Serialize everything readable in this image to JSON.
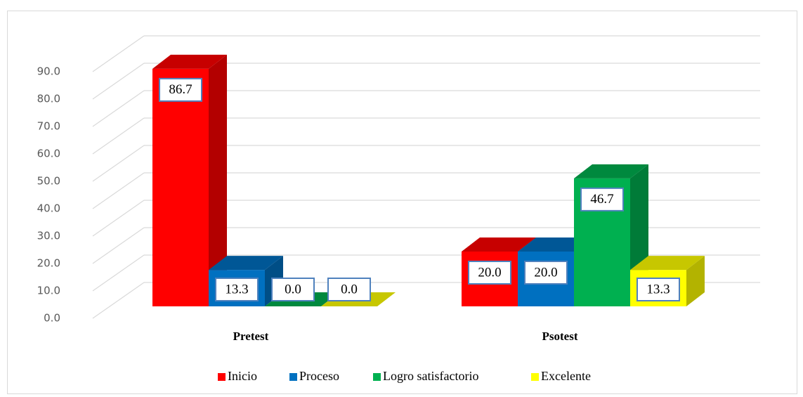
{
  "chart_data": {
    "type": "bar3d",
    "categories": [
      "Pretest",
      "Psotest"
    ],
    "series": [
      {
        "name": "Inicio",
        "color": "#ff0000",
        "values": [
          86.7,
          20.0
        ],
        "value_labels": [
          "86.7",
          "20.0"
        ]
      },
      {
        "name": "Proceso",
        "color": "#0070c0",
        "values": [
          13.3,
          20.0
        ],
        "value_labels": [
          "13.3",
          "20.0"
        ]
      },
      {
        "name": "Logro satisfactorio",
        "color": "#00b050",
        "values": [
          0.0,
          46.7
        ],
        "value_labels": [
          "0.0",
          "46.7"
        ]
      },
      {
        "name": "Excelente",
        "color": "#ffff00",
        "values": [
          0.0,
          13.3
        ],
        "value_labels": [
          "0.0",
          "13.3"
        ]
      }
    ],
    "ylim": [
      0,
      90
    ],
    "yticks": [
      {
        "value": 0,
        "label": "0.0"
      },
      {
        "value": 10,
        "label": "10.0"
      },
      {
        "value": 20,
        "label": "20.0"
      },
      {
        "value": 30,
        "label": "30.0"
      },
      {
        "value": 40,
        "label": "40.0"
      },
      {
        "value": 50,
        "label": "50.0"
      },
      {
        "value": 60,
        "label": "60.0"
      },
      {
        "value": 70,
        "label": "70.0"
      },
      {
        "value": 80,
        "label": "80.0"
      },
      {
        "value": 90,
        "label": "90.0"
      }
    ],
    "grid": true,
    "legend": "bottom"
  }
}
